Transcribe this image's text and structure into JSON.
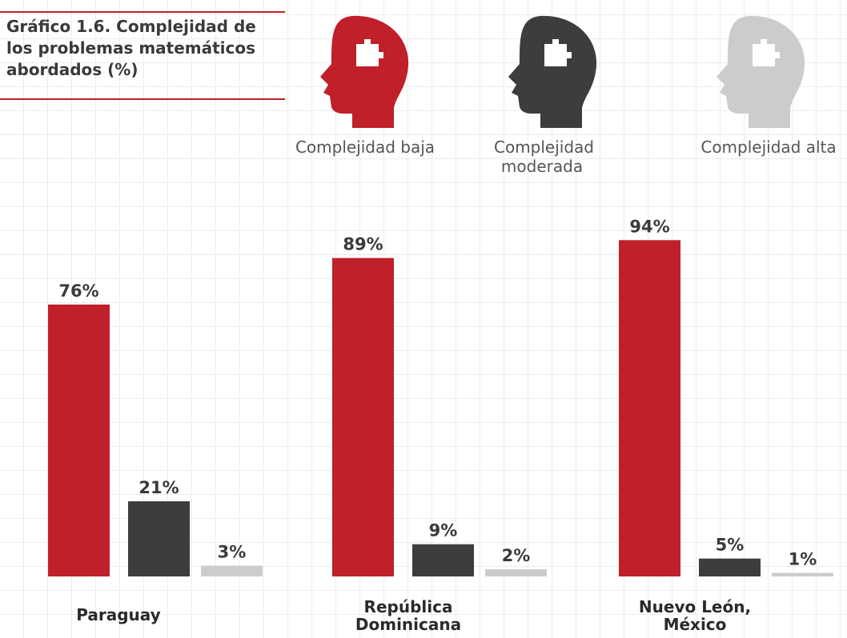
{
  "chart_data": {
    "type": "bar",
    "title": "Gráfico 1.6. Complejidad de los problemas matemáticos abordados (%)",
    "categories": [
      "Paraguay",
      "República Dominicana",
      "Nuevo León, México"
    ],
    "series": [
      {
        "name": "Complejidad baja",
        "color": "#c0202a",
        "values": [
          76,
          89,
          94
        ],
        "value_labels": [
          "76%",
          "89%",
          "94%"
        ]
      },
      {
        "name": "Complejidad moderada",
        "color": "#3d3d3d",
        "values": [
          21,
          9,
          5
        ],
        "value_labels": [
          "21%",
          "9%",
          "5%"
        ]
      },
      {
        "name": "Complejidad alta",
        "color": "#cccccc",
        "values": [
          3,
          2,
          1
        ],
        "value_labels": [
          "3%",
          "2%",
          "1%"
        ]
      }
    ]
  }
}
